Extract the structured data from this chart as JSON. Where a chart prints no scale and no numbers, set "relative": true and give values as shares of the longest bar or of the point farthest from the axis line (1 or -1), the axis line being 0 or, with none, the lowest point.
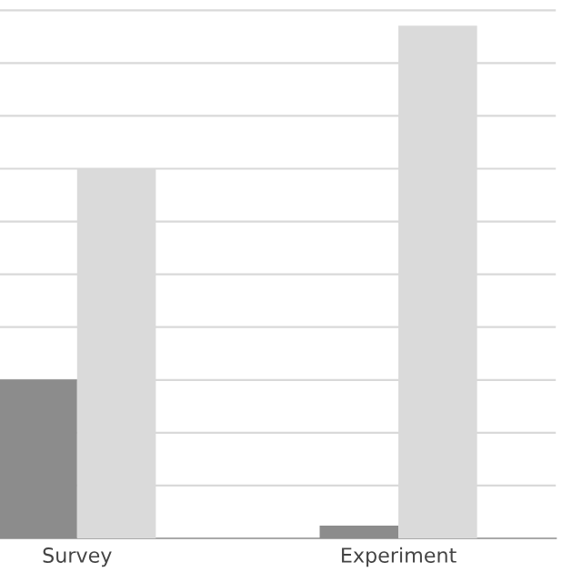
{
  "chart_data": {
    "type": "bar",
    "relative": true,
    "categories": [
      "Survey",
      "Experiment"
    ],
    "series": [
      {
        "color": "#8c8c8c",
        "values": [
          0.31,
          0.025
        ]
      },
      {
        "color": "#dadada",
        "values": [
          0.72,
          1.0
        ]
      }
    ],
    "grid": "y",
    "legend": false
  }
}
